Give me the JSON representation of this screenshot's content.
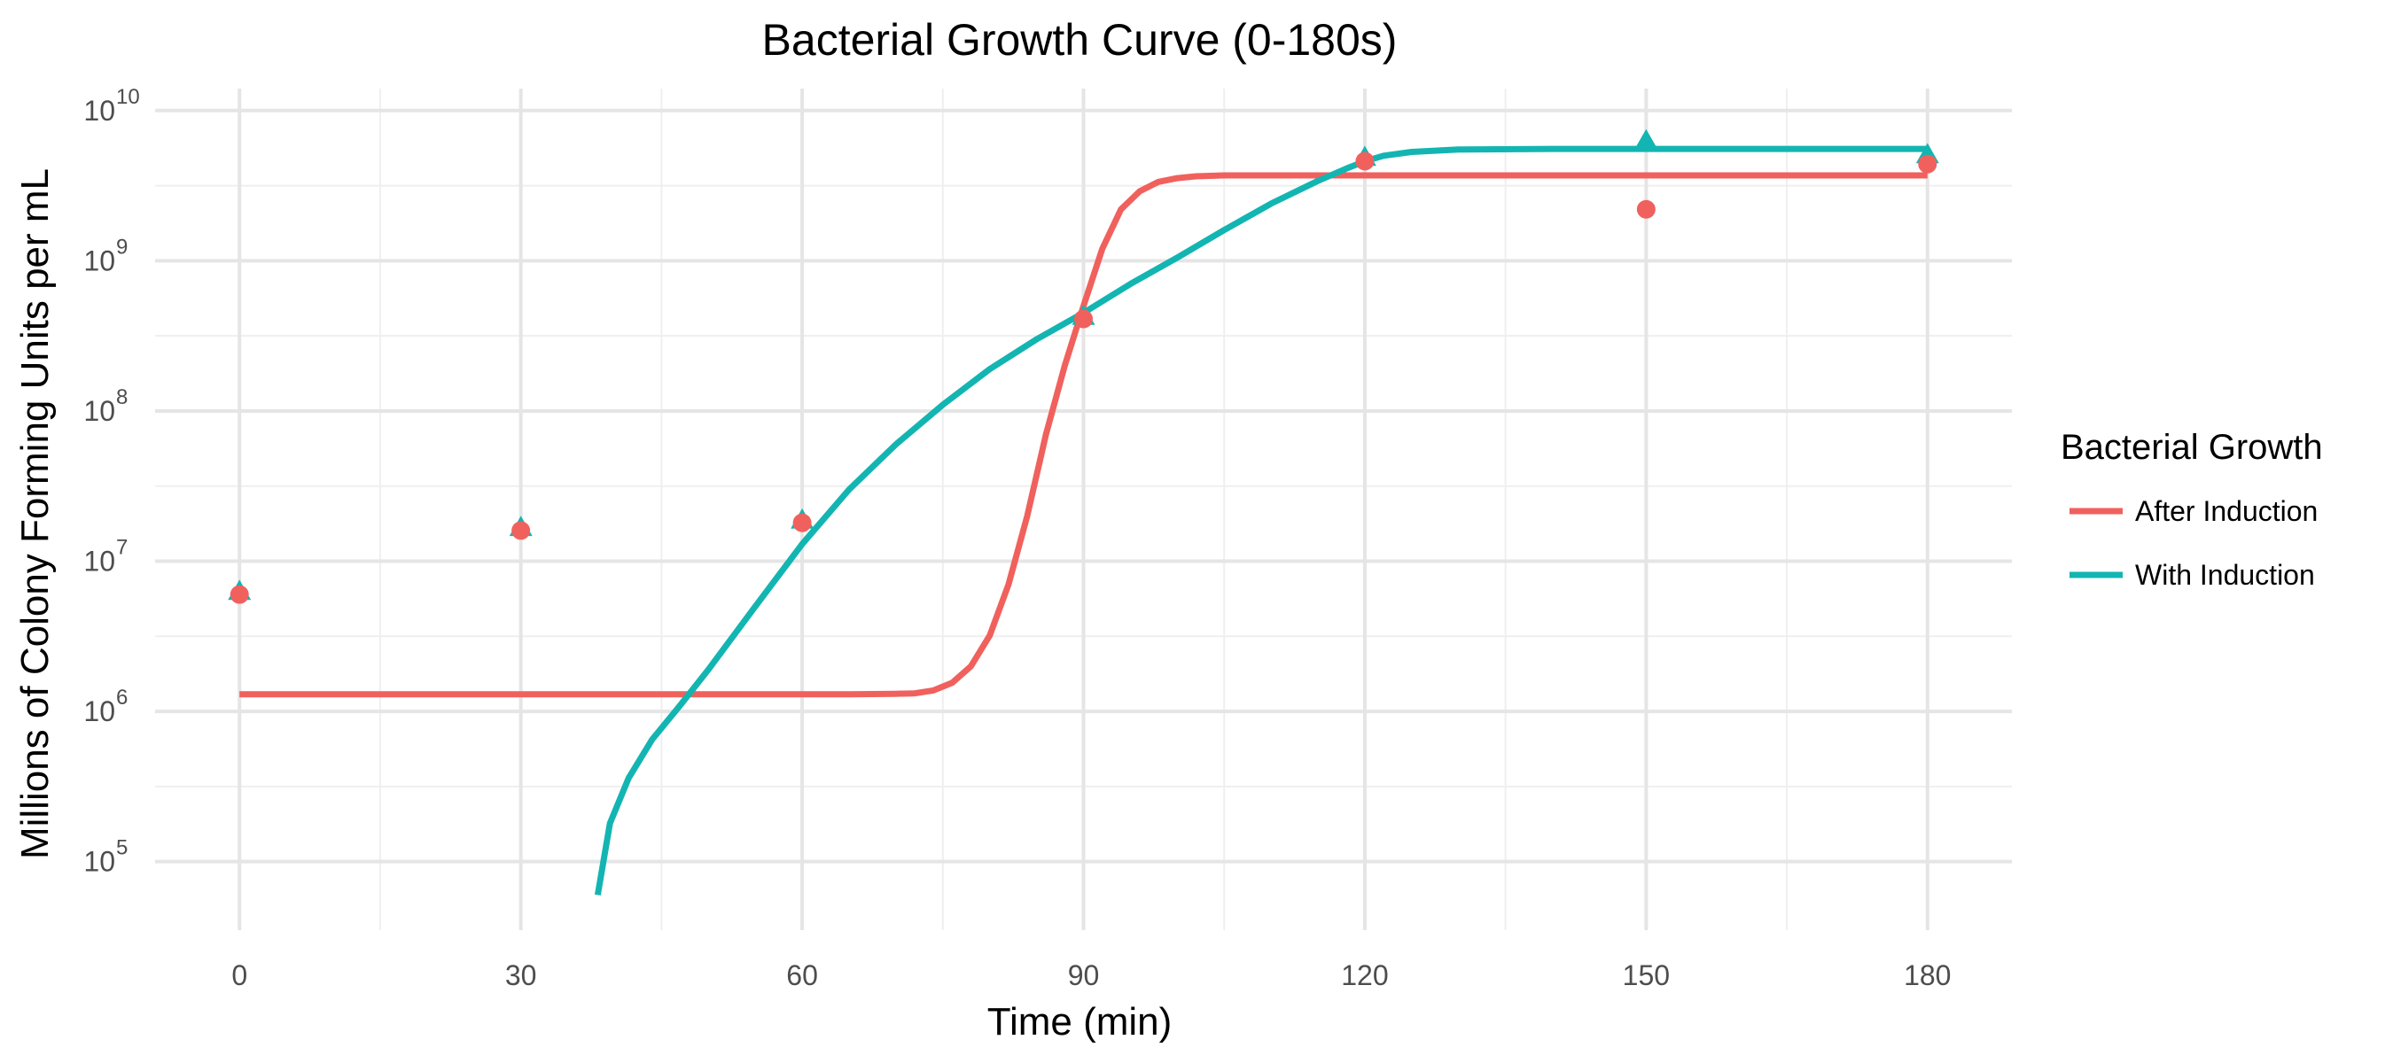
{
  "chart_data": {
    "type": "line",
    "title": "Bacterial Growth Curve (0-180s)",
    "xlabel": "Time (min)",
    "ylabel": "Millions of Colony Forming Units per mL",
    "x_scale": "linear",
    "y_scale": "log",
    "xlim": [
      -9,
      189
    ],
    "ylim": [
      35000,
      14000000000
    ],
    "x_ticks": [
      0,
      30,
      60,
      90,
      120,
      150,
      180
    ],
    "x_tick_labels": [
      "0",
      "30",
      "60",
      "90",
      "120",
      "150",
      "180"
    ],
    "y_ticks": [
      100000,
      1000000,
      10000000,
      100000000,
      1000000000,
      10000000000
    ],
    "y_tick_labels": [
      {
        "base": "10",
        "exp": "5"
      },
      {
        "base": "10",
        "exp": "6"
      },
      {
        "base": "10",
        "exp": "7"
      },
      {
        "base": "10",
        "exp": "8"
      },
      {
        "base": "10",
        "exp": "9"
      },
      {
        "base": "10",
        "exp": "10"
      }
    ],
    "grid": true,
    "legend": {
      "title": "Bacterial Growth",
      "position": "right"
    },
    "points": [
      {
        "series": "After Induction",
        "x": [
          0,
          30,
          60,
          90,
          120,
          150,
          180
        ],
        "y": [
          6000000,
          16000000,
          18000000,
          410000000,
          4600000000,
          2200000000,
          4400000000
        ]
      },
      {
        "series": "With Induction",
        "x": [
          0,
          30,
          60,
          90,
          120,
          150,
          180
        ],
        "y": [
          6200000,
          16500000,
          18500000,
          420000000,
          4800000000,
          6200000000,
          5000000000
        ]
      }
    ],
    "series": [
      {
        "name": "After Induction",
        "color": "#F0615D",
        "marker": "circle",
        "x": [
          0,
          10,
          20,
          30,
          40,
          50,
          60,
          65,
          70,
          72,
          74,
          76,
          78,
          80,
          82,
          84,
          86,
          88,
          90,
          92,
          94,
          96,
          98,
          100,
          102,
          105,
          110,
          120,
          140,
          160,
          180
        ],
        "y": [
          1300000,
          1300000,
          1300000,
          1300000,
          1300000,
          1300000,
          1300000,
          1300000,
          1310000,
          1320000,
          1380000,
          1550000,
          2000000,
          3200000,
          7000000,
          20000000,
          70000000,
          200000000,
          500000000,
          1200000000,
          2200000000,
          2900000000,
          3350000000,
          3550000000,
          3650000000,
          3700000000,
          3700000000,
          3700000000,
          3700000000,
          3700000000,
          3700000000
        ]
      },
      {
        "name": "With Induction",
        "color": "#13B5B2",
        "marker": "triangle",
        "x": [
          38.2,
          39.5,
          41.5,
          44,
          47,
          50,
          55,
          60,
          65,
          70,
          75,
          80,
          85,
          90,
          95,
          100,
          105,
          110,
          115,
          118,
          120,
          122,
          125,
          130,
          140,
          160,
          180
        ],
        "y": [
          60000,
          180000,
          360000,
          650000,
          1100000,
          1900000,
          5000000,
          13000000,
          30000000,
          60000000,
          110000000,
          190000000,
          300000000,
          450000000,
          700000000,
          1050000000,
          1600000000,
          2400000000,
          3400000000,
          4100000000,
          4600000000,
          5000000000,
          5300000000,
          5500000000,
          5550000000,
          5550000000,
          5550000000
        ]
      }
    ]
  }
}
